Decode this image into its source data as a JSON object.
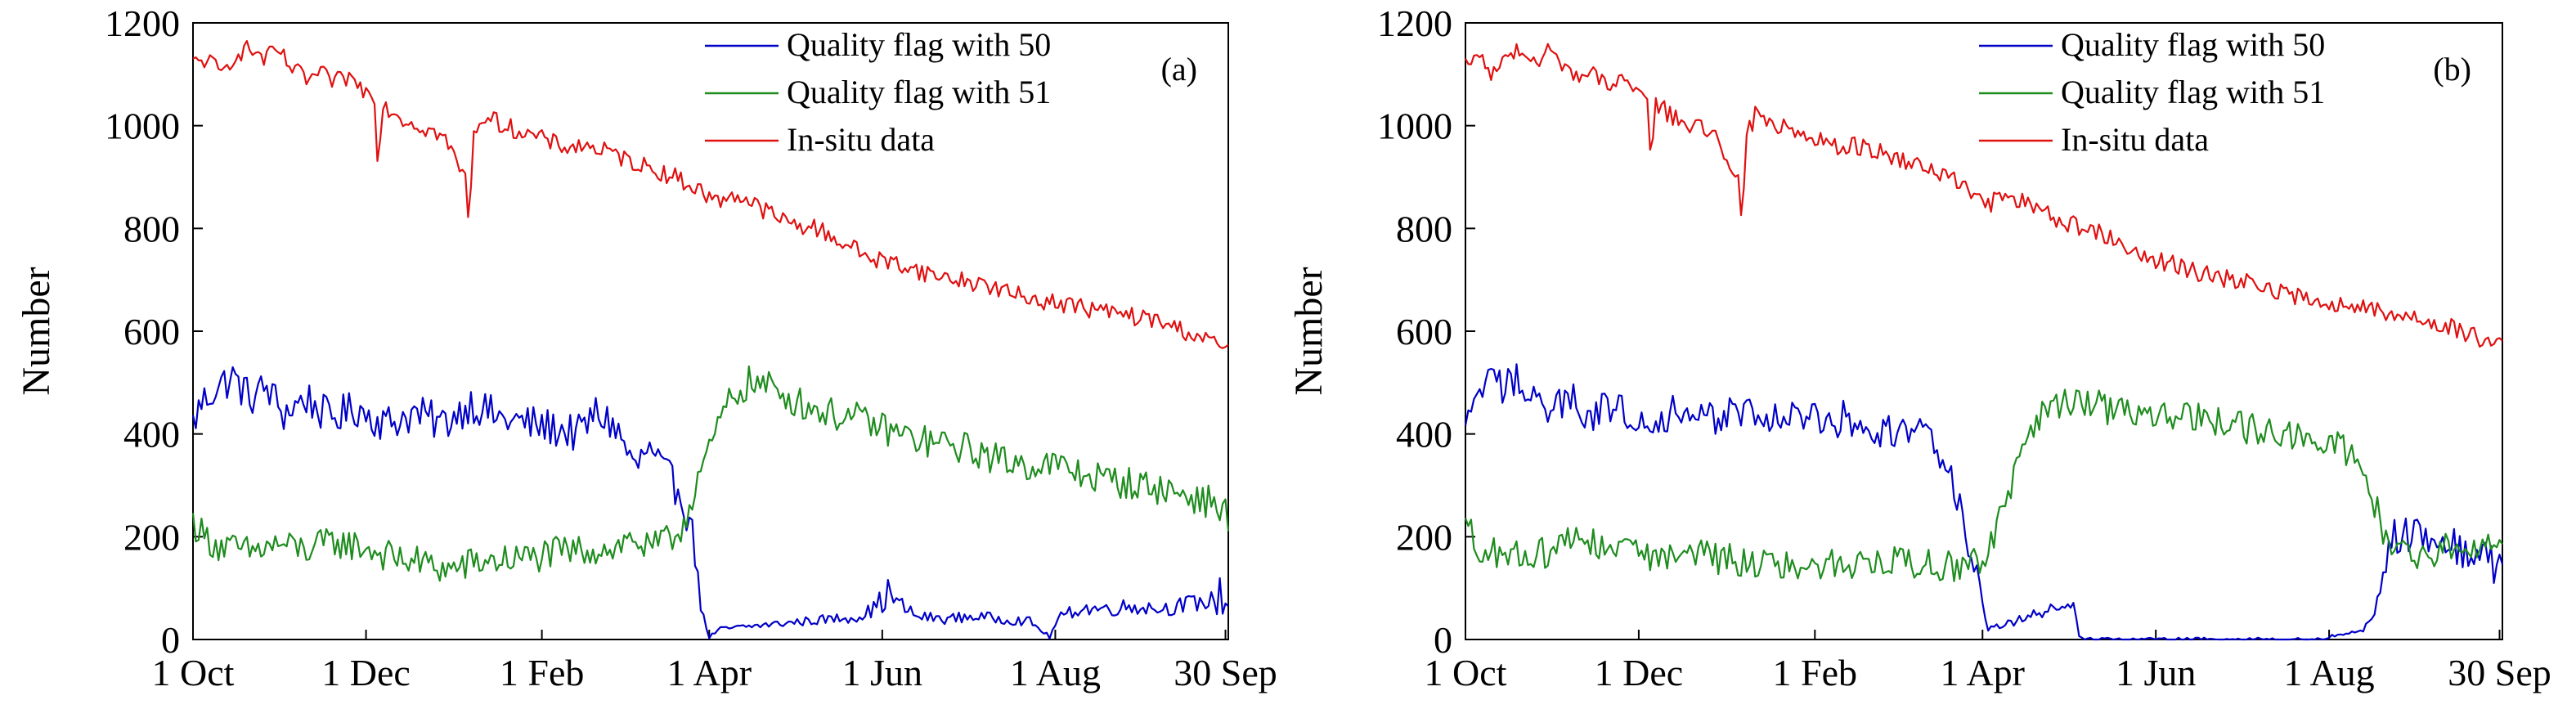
{
  "chart_data": [
    {
      "type": "line",
      "panel_label": "(a)",
      "ylabel": "Number",
      "xlabel": "",
      "ylim": [
        0,
        1200
      ],
      "yticks": [
        "0",
        "200",
        "400",
        "600",
        "800",
        "1000",
        "1200"
      ],
      "xlim": [
        0,
        365
      ],
      "xticks": [
        {
          "label": "1 Oct",
          "day": 0
        },
        {
          "label": "1 Dec",
          "day": 61
        },
        {
          "label": "1 Feb",
          "day": 123
        },
        {
          "label": "1 Apr",
          "day": 182
        },
        {
          "label": "1 Jun",
          "day": 243
        },
        {
          "label": "1 Aug",
          "day": 304
        },
        {
          "label": "30 Sep",
          "day": 364
        }
      ],
      "legend_position": "top-right",
      "series": [
        {
          "name": "Quality flag with 50",
          "color": "#0000c8",
          "x": [
            0,
            3,
            8,
            14,
            20,
            26,
            32,
            40,
            48,
            58,
            68,
            78,
            88,
            98,
            108,
            118,
            128,
            136,
            142,
            148,
            152,
            156,
            160,
            164,
            168,
            172,
            175,
            178,
            180,
            182,
            186,
            195,
            205,
            215,
            225,
            235,
            240,
            244,
            255,
            265,
            275,
            285,
            295,
            302,
            305,
            312,
            322,
            332,
            342,
            352,
            360,
            362,
            365
          ],
          "y": [
            420,
            460,
            490,
            510,
            470,
            490,
            440,
            470,
            430,
            450,
            420,
            440,
            420,
            460,
            430,
            420,
            410,
            400,
            440,
            420,
            380,
            330,
            370,
            340,
            310,
            290,
            230,
            140,
            40,
            5,
            20,
            25,
            30,
            35,
            40,
            45,
            60,
            90,
            45,
            40,
            45,
            40,
            35,
            5,
            40,
            60,
            60,
            65,
            60,
            70,
            75,
            90,
            65
          ]
        },
        {
          "name": "Quality flag with 51",
          "color": "#1e8c1e",
          "x": [
            0,
            4,
            10,
            20,
            30,
            40,
            50,
            60,
            70,
            80,
            90,
            100,
            110,
            120,
            130,
            140,
            150,
            155,
            160,
            165,
            170,
            174,
            178,
            182,
            186,
            190,
            196,
            204,
            214,
            224,
            234,
            244,
            254,
            264,
            274,
            284,
            294,
            304,
            314,
            324,
            334,
            344,
            354,
            360,
            365
          ],
          "y": [
            230,
            200,
            180,
            170,
            185,
            175,
            190,
            180,
            160,
            150,
            135,
            150,
            155,
            160,
            170,
            175,
            180,
            200,
            175,
            185,
            200,
            240,
            320,
            360,
            430,
            470,
            500,
            490,
            460,
            440,
            430,
            410,
            390,
            380,
            370,
            350,
            340,
            340,
            320,
            310,
            300,
            290,
            275,
            265,
            240
          ]
        },
        {
          "name": "In-situ data",
          "color": "#e01010",
          "x": [
            0,
            5,
            10,
            15,
            20,
            25,
            30,
            35,
            40,
            45,
            50,
            55,
            60,
            64,
            65,
            67,
            70,
            75,
            80,
            88,
            96,
            97,
            99,
            102,
            110,
            120,
            130,
            140,
            150,
            160,
            170,
            180,
            185,
            190,
            200,
            210,
            220,
            230,
            240,
            250,
            260,
            270,
            280,
            290,
            300,
            310,
            320,
            330,
            340,
            350,
            355,
            360,
            365
          ],
          "y": [
            1120,
            1130,
            1100,
            1140,
            1150,
            1130,
            1145,
            1110,
            1090,
            1100,
            1085,
            1095,
            1070,
            1060,
            940,
            1040,
            1030,
            1010,
            1000,
            980,
            900,
            810,
            980,
            1020,
            1000,
            980,
            960,
            960,
            940,
            920,
            900,
            870,
            850,
            870,
            840,
            810,
            800,
            770,
            740,
            730,
            710,
            700,
            690,
            670,
            660,
            650,
            640,
            630,
            620,
            600,
            590,
            575,
            570
          ]
        }
      ]
    },
    {
      "type": "line",
      "panel_label": "(b)",
      "ylabel": "Number",
      "xlabel": "",
      "ylim": [
        0,
        1200
      ],
      "yticks": [
        "0",
        "200",
        "400",
        "600",
        "800",
        "1000",
        "1200"
      ],
      "xlim": [
        0,
        365
      ],
      "xticks": [
        {
          "label": "1 Oct",
          "day": 0
        },
        {
          "label": "1 Dec",
          "day": 61
        },
        {
          "label": "1 Feb",
          "day": 123
        },
        {
          "label": "1 Apr",
          "day": 182
        },
        {
          "label": "1 Jun",
          "day": 243
        },
        {
          "label": "1 Aug",
          "day": 304
        },
        {
          "label": "30 Sep",
          "day": 364
        }
      ],
      "legend_position": "top-right",
      "series": [
        {
          "name": "Quality flag with 50",
          "color": "#0000c8",
          "x": [
            0,
            4,
            8,
            14,
            20,
            26,
            30,
            36,
            44,
            54,
            64,
            74,
            84,
            94,
            104,
            114,
            124,
            134,
            144,
            154,
            160,
            166,
            172,
            178,
            184,
            188,
            196,
            206,
            214,
            216,
            218,
            230,
            250,
            270,
            290,
            300,
            304,
            310,
            315,
            320,
            326,
            334,
            344,
            354,
            360,
            365
          ],
          "y": [
            400,
            480,
            500,
            490,
            510,
            460,
            440,
            470,
            440,
            450,
            430,
            440,
            420,
            450,
            430,
            440,
            420,
            430,
            410,
            400,
            420,
            380,
            300,
            150,
            20,
            25,
            40,
            60,
            65,
            5,
            2,
            0,
            0,
            0,
            0,
            0,
            5,
            10,
            15,
            40,
            200,
            210,
            190,
            170,
            155,
            130
          ]
        },
        {
          "name": "Quality flag with 51",
          "color": "#1e8c1e",
          "x": [
            0,
            5,
            12,
            20,
            30,
            38,
            46,
            56,
            66,
            76,
            86,
            96,
            106,
            116,
            126,
            136,
            146,
            156,
            166,
            176,
            182,
            186,
            192,
            198,
            206,
            216,
            226,
            236,
            246,
            256,
            266,
            276,
            286,
            296,
            306,
            312,
            318,
            322,
            326,
            334,
            344,
            354,
            360,
            365
          ],
          "y": [
            220,
            180,
            170,
            165,
            170,
            215,
            180,
            175,
            165,
            170,
            160,
            155,
            140,
            140,
            145,
            150,
            155,
            150,
            140,
            145,
            150,
            190,
            300,
            410,
            460,
            460,
            450,
            440,
            430,
            430,
            420,
            410,
            400,
            390,
            380,
            360,
            300,
            230,
            170,
            165,
            175,
            185,
            195,
            200
          ]
        },
        {
          "name": "In-situ data",
          "color": "#e01010",
          "x": [
            0,
            5,
            10,
            15,
            20,
            25,
            30,
            35,
            40,
            45,
            50,
            55,
            60,
            64,
            65,
            67,
            70,
            75,
            80,
            88,
            96,
            97,
            99,
            102,
            110,
            120,
            130,
            140,
            150,
            160,
            170,
            180,
            185,
            190,
            200,
            210,
            220,
            230,
            240,
            250,
            260,
            270,
            280,
            290,
            300,
            310,
            320,
            330,
            340,
            350,
            355,
            360,
            365
          ],
          "y": [
            1120,
            1130,
            1100,
            1140,
            1150,
            1130,
            1145,
            1110,
            1090,
            1100,
            1085,
            1095,
            1070,
            1060,
            940,
            1040,
            1030,
            1010,
            1000,
            980,
            900,
            810,
            980,
            1020,
            1000,
            980,
            960,
            960,
            940,
            920,
            900,
            870,
            850,
            870,
            840,
            810,
            800,
            770,
            740,
            730,
            710,
            700,
            690,
            670,
            660,
            650,
            640,
            630,
            620,
            600,
            590,
            575,
            570
          ]
        }
      ]
    }
  ]
}
